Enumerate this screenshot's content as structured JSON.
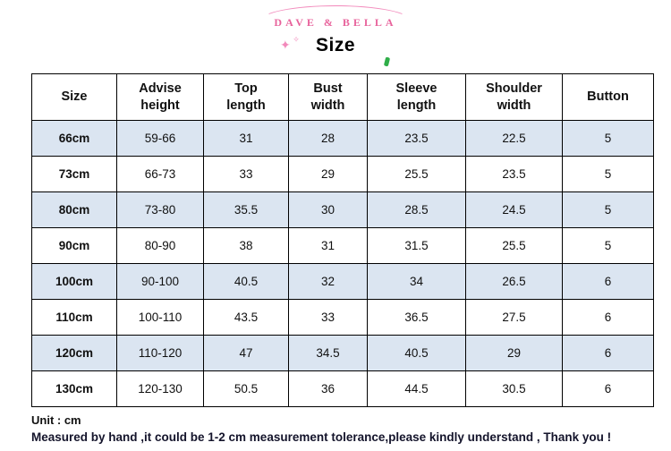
{
  "brand": "DAVE & BELLA",
  "title": "Size",
  "decorations": {
    "sparkle_left_large": "✦",
    "sparkle_left_small": "✧"
  },
  "table": {
    "headers": [
      "Size",
      "Advise\nheight",
      "Top\nlength",
      "Bust\nwidth",
      "Sleeve\nlength",
      "Shoulder\nwidth",
      "Button"
    ],
    "rows": [
      [
        "66cm",
        "59-66",
        "31",
        "28",
        "23.5",
        "22.5",
        "5"
      ],
      [
        "73cm",
        "66-73",
        "33",
        "29",
        "25.5",
        "23.5",
        "5"
      ],
      [
        "80cm",
        "73-80",
        "35.5",
        "30",
        "28.5",
        "24.5",
        "5"
      ],
      [
        "90cm",
        "80-90",
        "38",
        "31",
        "31.5",
        "25.5",
        "5"
      ],
      [
        "100cm",
        "90-100",
        "40.5",
        "32",
        "34",
        "26.5",
        "6"
      ],
      [
        "110cm",
        "100-110",
        "43.5",
        "33",
        "36.5",
        "27.5",
        "6"
      ],
      [
        "120cm",
        "110-120",
        "47",
        "34.5",
        "40.5",
        "29",
        "6"
      ],
      [
        "130cm",
        "120-130",
        "50.5",
        "36",
        "44.5",
        "30.5",
        "6"
      ]
    ]
  },
  "footer": {
    "unit": "Unit : cm",
    "note": "Measured by hand ,it could be 1-2 cm measurement tolerance,please kindly understand , Thank you !"
  },
  "colors": {
    "brand_pink": "#e8639c",
    "sparkle_pink": "#f289bb",
    "row_alt_blue": "#dbe5f1",
    "border_black": "#000000",
    "text_dark": "#111111",
    "green_accent": "#2fae49"
  },
  "chart_data": {
    "type": "table",
    "title": "Size",
    "unit": "cm",
    "columns": [
      "Size",
      "Advise height",
      "Top length",
      "Bust width",
      "Sleeve length",
      "Shoulder width",
      "Button"
    ],
    "rows": [
      [
        "66cm",
        "59-66",
        31,
        28,
        23.5,
        22.5,
        5
      ],
      [
        "73cm",
        "66-73",
        33,
        29,
        25.5,
        23.5,
        5
      ],
      [
        "80cm",
        "73-80",
        35.5,
        30,
        28.5,
        24.5,
        5
      ],
      [
        "90cm",
        "80-90",
        38,
        31,
        31.5,
        25.5,
        5
      ],
      [
        "100cm",
        "90-100",
        40.5,
        32,
        34,
        26.5,
        6
      ],
      [
        "110cm",
        "100-110",
        43.5,
        33,
        36.5,
        27.5,
        6
      ],
      [
        "120cm",
        "110-120",
        47,
        34.5,
        40.5,
        29,
        6
      ],
      [
        "130cm",
        "120-130",
        50.5,
        36,
        44.5,
        30.5,
        6
      ]
    ],
    "notes": [
      "Unit : cm",
      "Measured by hand, 1-2 cm measurement tolerance possible"
    ]
  }
}
